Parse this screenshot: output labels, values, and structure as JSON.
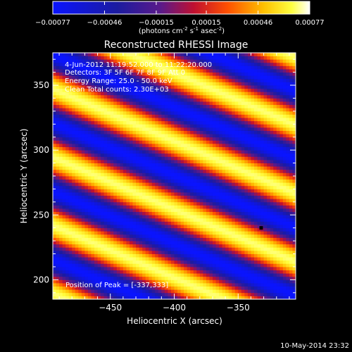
{
  "chart_data": {
    "type": "heatmap",
    "title": "Reconstructed RHESSI Image",
    "xlabel": "Heliocentric X (arcsec)",
    "ylabel": "Heliocentric Y (arcsec)",
    "xlim": [
      -495,
      -305
    ],
    "ylim": [
      185,
      375
    ],
    "xticks": [
      -450,
      -400,
      -350
    ],
    "yticks": [
      200,
      250,
      300,
      350
    ],
    "colorbar": {
      "ticks": [
        "-0.00077",
        "-0.00046",
        "-0.00015",
        "0.00015",
        "0.00046",
        "0.00077"
      ],
      "range": [
        -0.00077,
        0.00077
      ],
      "unit_main": "(photons cm",
      "unit_exp1": "-2",
      "unit_mid": " s",
      "unit_exp2": "-1",
      "unit_mid2": " asec",
      "unit_exp3": "-2",
      "unit_end": ")"
    },
    "annotations": [
      "4-Jun-2012 11:19:52.000 to 11:22:20.000",
      "Detectors: 3F 5F 6F 7F 8F 9F Att 0",
      "Energy Range: 25.0 - 50.0 keV",
      "Clean    Total counts: 2.30E+03"
    ],
    "peak_label": "Position of Peak = [-337,333]",
    "peak": [
      -337,
      333
    ],
    "marker": [
      -332,
      240
    ],
    "pattern": {
      "description_free": true,
      "stripe_period": 48.5,
      "stripe_angle_deg": 67,
      "amplitude": 0.00077
    },
    "colormap": "blue-purple-red-yellow-white"
  },
  "footer": {
    "date": "10-May-2014 23:32"
  }
}
